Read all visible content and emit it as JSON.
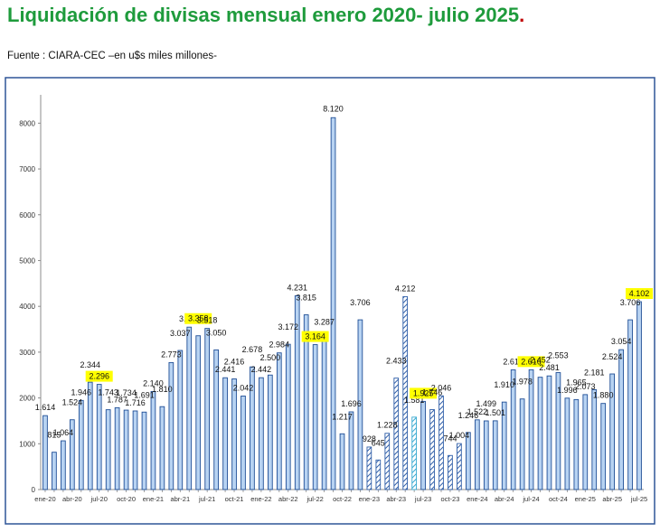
{
  "header": {
    "title": "Liquidación de divisas mensual enero 2020- julio 2025",
    "title_period": ".",
    "source": "Fuente : CIARA-CEC –en u$s miles millones-"
  },
  "colors": {
    "title": "#1e9b3c",
    "bar_fill": "#b8d3f2",
    "bar_stroke": "#1f4e96",
    "hatch_stroke": "#2f5ea8",
    "hatch_light": "#36a8d0",
    "highlight": "#ffff00",
    "frame": "#2f5597"
  },
  "chart_data": {
    "type": "bar",
    "title": "",
    "xlabel": "",
    "ylabel": "",
    "ylim": [
      0,
      8500
    ],
    "yticks": [
      0,
      1000,
      2000,
      3000,
      4000,
      5000,
      6000,
      7000,
      8000
    ],
    "grid": false,
    "legend": "none",
    "categories": [
      "ene-20",
      "feb-20",
      "mar-20",
      "abr-20",
      "may-20",
      "jun-20",
      "jul-20",
      "ago-20",
      "sep-20",
      "oct-20",
      "nov-20",
      "dic-20",
      "ene-21",
      "feb-21",
      "mar-21",
      "abr-21",
      "may-21",
      "jun-21",
      "jul-21",
      "ago-21",
      "sep-21",
      "oct-21",
      "nov-21",
      "dic-21",
      "ene-22",
      "feb-22",
      "mar-22",
      "abr-22",
      "may-22",
      "jun-22",
      "jul-22",
      "ago-22",
      "sep-22",
      "oct-22",
      "nov-22",
      "dic-22",
      "ene-23",
      "feb-23",
      "mar-23",
      "abr-23",
      "may-23",
      "jun-23",
      "jul-23",
      "ago-23",
      "sep-23",
      "oct-23",
      "nov-23",
      "dic-23",
      "ene-24",
      "feb-24",
      "mar-24",
      "abr-24",
      "may-24",
      "jun-24",
      "jul-24",
      "ago-24",
      "sep-24",
      "oct-24",
      "nov-24",
      "dic-24",
      "ene-25",
      "feb-25",
      "mar-25",
      "abr-25",
      "may-25",
      "jun-25",
      "jul-25"
    ],
    "visible_tick_labels": [
      "ene-20",
      "abr-20",
      "jul-20",
      "oct-20",
      "ene-21",
      "abr-21",
      "jul-21",
      "oct-21",
      "ene-22",
      "abr-22",
      "jul-22",
      "oct-22",
      "ene-23",
      "abr-23",
      "jul-23",
      "oct-23",
      "ene-24",
      "abr-24",
      "jul-24",
      "oct-24",
      "ene-25",
      "abr-25",
      "jul-25"
    ],
    "values": [
      1614,
      815,
      1064,
      1524,
      1946,
      2344,
      2296,
      1743,
      1787,
      1734,
      1716,
      1691,
      2140,
      1810,
      2773,
      3037,
      3546,
      3358,
      3518,
      3050,
      2441,
      2416,
      2042,
      2678,
      2442,
      2500,
      2984,
      3172,
      4231,
      3815,
      3164,
      3287,
      8120,
      1217,
      1696,
      3706,
      928,
      645,
      1228,
      2433,
      4212,
      1581,
      1925,
      1746,
      2046,
      744,
      1004,
      1246,
      1522,
      1499,
      1501,
      1910,
      2613,
      1978,
      2616,
      2452,
      2481,
      2553,
      1996,
      1965,
      2073,
      2181,
      1880,
      2524,
      3054,
      3706,
      4102
    ],
    "data_labels": [
      "1.614",
      "815",
      "1.064",
      "1.524",
      "1.946",
      "2.344",
      "2.296",
      "1.743",
      "1.787",
      "1.734",
      "1.716",
      "1.691",
      "2.140",
      "1.810",
      "2.773",
      "3.037",
      "3.546",
      "3.358",
      "3.518",
      "3.050",
      "2.441",
      "2.416",
      "2.042",
      "2.678",
      "2.442",
      "2.500",
      "2.984",
      "3.172",
      "4.231",
      "3.815",
      "3.164",
      "3.287",
      "8.120",
      "1.217",
      "1.696",
      "3.706",
      "928",
      "645",
      "1.228",
      "2.433",
      "4.212",
      "1.581",
      "1.925",
      "1.746",
      "2.046",
      "744",
      "1.004",
      "1.246",
      "1.522",
      "1.499",
      "1.501",
      "1.910",
      "2.613",
      "1.978",
      "2.616",
      "2.452",
      "2.481",
      "2.553",
      "1.996",
      "1.965",
      "2.073",
      "2.181",
      "1.880",
      "2.524",
      "3.054",
      "3.706",
      "4.102"
    ],
    "highlighted_labels": [
      "2.296",
      "3.358",
      "3.164",
      "1.925",
      "2.616",
      "4.102"
    ],
    "bar_styles": [
      "solid",
      "solid",
      "solid",
      "solid",
      "solid",
      "solid",
      "solid",
      "solid",
      "solid",
      "solid",
      "solid",
      "solid",
      "solid",
      "solid",
      "solid",
      "solid",
      "solid",
      "solid",
      "solid",
      "solid",
      "solid",
      "solid",
      "solid",
      "solid",
      "solid",
      "solid",
      "solid",
      "solid",
      "solid",
      "solid",
      "solid",
      "solid",
      "solid",
      "solid",
      "solid",
      "solid",
      "hatched",
      "hatched",
      "hatched",
      "hatched",
      "hatched",
      "hatched-light",
      "solid",
      "hatched",
      "hatched",
      "hatched",
      "hatched",
      "solid",
      "solid",
      "solid",
      "solid",
      "solid",
      "solid",
      "solid",
      "solid",
      "solid",
      "solid",
      "solid",
      "solid",
      "solid",
      "solid",
      "solid",
      "solid",
      "solid",
      "solid",
      "solid",
      "solid"
    ]
  }
}
